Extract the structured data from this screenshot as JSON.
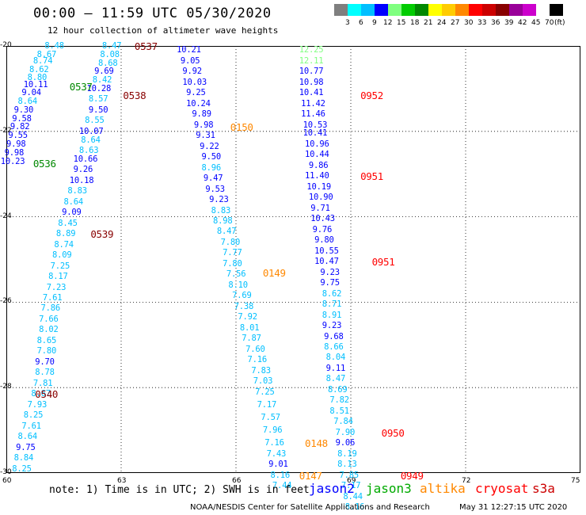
{
  "header": {
    "title": "00:00 — 11:59 UTC 05/30/2020",
    "subtitle": "12 hour collection of altimeter wave heights"
  },
  "colorbar": {
    "unit_label": "(ft)",
    "tick_labels": [
      "3",
      "6",
      "9",
      "12",
      "15",
      "18",
      "21",
      "24",
      "27",
      "30",
      "33",
      "36",
      "39",
      "42",
      "45",
      "70"
    ],
    "colors": [
      "#7f7f7f",
      "#00ffff",
      "#00bfff",
      "#0000ff",
      "#7fff7f",
      "#00cc00",
      "#008800",
      "#ffff00",
      "#ffcc00",
      "#ff8800",
      "#ff0000",
      "#cc0000",
      "#880000",
      "#990099",
      "#cc00cc",
      "#ffffff",
      "#000000"
    ]
  },
  "map": {
    "lat_labels": [
      "-20",
      "-22",
      "-24",
      "-26",
      "-28",
      "-30"
    ],
    "lon_labels": [
      "60",
      "63",
      "66",
      "69",
      "72",
      "75"
    ],
    "lon_range": [
      60,
      75
    ],
    "lat_range": [
      -30,
      -20
    ]
  },
  "observations": [
    {
      "v": "8.48",
      "lon": 61.0,
      "lat": -20.0,
      "c": "#00bfff"
    },
    {
      "v": "8.67",
      "lon": 60.8,
      "lat": -20.2,
      "c": "#00bfff"
    },
    {
      "v": "8.74",
      "lon": 60.7,
      "lat": -20.35,
      "c": "#00bfff"
    },
    {
      "v": "8.62",
      "lon": 60.6,
      "lat": -20.55,
      "c": "#00bfff"
    },
    {
      "v": "8.80",
      "lon": 60.55,
      "lat": -20.75,
      "c": "#00bfff"
    },
    {
      "v": "10.11",
      "lon": 60.45,
      "lat": -20.9,
      "c": "#0000ff"
    },
    {
      "v": "9.04",
      "lon": 60.4,
      "lat": -21.1,
      "c": "#0000ff"
    },
    {
      "v": "8.64",
      "lon": 60.3,
      "lat": -21.3,
      "c": "#00bfff"
    },
    {
      "v": "9.30",
      "lon": 60.2,
      "lat": -21.5,
      "c": "#0000ff"
    },
    {
      "v": "9.58",
      "lon": 60.15,
      "lat": -21.7,
      "c": "#0000ff"
    },
    {
      "v": "9.82",
      "lon": 60.1,
      "lat": -21.9,
      "c": "#0000ff"
    },
    {
      "v": "9.55",
      "lon": 60.05,
      "lat": -22.1,
      "c": "#0000ff"
    },
    {
      "v": "9.98",
      "lon": 60.0,
      "lat": -22.3,
      "c": "#0000ff"
    },
    {
      "v": "9.98",
      "lon": 59.95,
      "lat": -22.5,
      "c": "#0000ff"
    },
    {
      "v": "10.23",
      "lon": 59.85,
      "lat": -22.7,
      "c": "#0000ff"
    },
    {
      "v": "8.47",
      "lon": 62.5,
      "lat": -20.0,
      "c": "#00bfff"
    },
    {
      "v": "8.08",
      "lon": 62.45,
      "lat": -20.2,
      "c": "#00bfff"
    },
    {
      "v": "8.68",
      "lon": 62.4,
      "lat": -20.4,
      "c": "#00bfff"
    },
    {
      "v": "9.69",
      "lon": 62.3,
      "lat": -20.6,
      "c": "#0000ff"
    },
    {
      "v": "8.42",
      "lon": 62.25,
      "lat": -20.8,
      "c": "#00bfff"
    },
    {
      "v": "10.28",
      "lon": 62.1,
      "lat": -21.0,
      "c": "#0000ff"
    },
    {
      "v": "8.57",
      "lon": 62.15,
      "lat": -21.25,
      "c": "#00bfff"
    },
    {
      "v": "9.50",
      "lon": 62.15,
      "lat": -21.5,
      "c": "#0000ff"
    },
    {
      "v": "8.55",
      "lon": 62.05,
      "lat": -21.75,
      "c": "#00bfff"
    },
    {
      "v": "10.07",
      "lon": 61.9,
      "lat": -22.0,
      "c": "#0000ff"
    },
    {
      "v": "8.64",
      "lon": 61.95,
      "lat": -22.2,
      "c": "#00bfff"
    },
    {
      "v": "8.63",
      "lon": 61.9,
      "lat": -22.45,
      "c": "#00bfff"
    },
    {
      "v": "10.66",
      "lon": 61.75,
      "lat": -22.65,
      "c": "#0000ff"
    },
    {
      "v": "9.26",
      "lon": 61.75,
      "lat": -22.9,
      "c": "#0000ff"
    },
    {
      "v": "10.18",
      "lon": 61.65,
      "lat": -23.15,
      "c": "#0000ff"
    },
    {
      "v": "8.83",
      "lon": 61.6,
      "lat": -23.4,
      "c": "#00bfff"
    },
    {
      "v": "8.64",
      "lon": 61.5,
      "lat": -23.65,
      "c": "#00bfff"
    },
    {
      "v": "9.09",
      "lon": 61.45,
      "lat": -23.9,
      "c": "#0000ff"
    },
    {
      "v": "8.45",
      "lon": 61.35,
      "lat": -24.15,
      "c": "#00bfff"
    },
    {
      "v": "8.89",
      "lon": 61.3,
      "lat": -24.4,
      "c": "#00bfff"
    },
    {
      "v": "8.74",
      "lon": 61.25,
      "lat": -24.65,
      "c": "#00bfff"
    },
    {
      "v": "8.09",
      "lon": 61.2,
      "lat": -24.9,
      "c": "#00bfff"
    },
    {
      "v": "7.25",
      "lon": 61.15,
      "lat": -25.15,
      "c": "#00bfff"
    },
    {
      "v": "8.17",
      "lon": 61.1,
      "lat": -25.4,
      "c": "#00bfff"
    },
    {
      "v": "7.23",
      "lon": 61.05,
      "lat": -25.65,
      "c": "#00bfff"
    },
    {
      "v": "7.61",
      "lon": 60.95,
      "lat": -25.9,
      "c": "#00bfff"
    },
    {
      "v": "7.86",
      "lon": 60.9,
      "lat": -26.15,
      "c": "#00bfff"
    },
    {
      "v": "7.66",
      "lon": 60.85,
      "lat": -26.4,
      "c": "#00bfff"
    },
    {
      "v": "8.02",
      "lon": 60.85,
      "lat": -26.65,
      "c": "#00bfff"
    },
    {
      "v": "8.65",
      "lon": 60.8,
      "lat": -26.9,
      "c": "#00bfff"
    },
    {
      "v": "7.80",
      "lon": 60.8,
      "lat": -27.15,
      "c": "#00bfff"
    },
    {
      "v": "9.70",
      "lon": 60.75,
      "lat": -27.4,
      "c": "#0000ff"
    },
    {
      "v": "8.78",
      "lon": 60.75,
      "lat": -27.65,
      "c": "#00bfff"
    },
    {
      "v": "7.81",
      "lon": 60.7,
      "lat": -27.9,
      "c": "#00bfff"
    },
    {
      "v": "8.67",
      "lon": 60.65,
      "lat": -28.15,
      "c": "#00bfff"
    },
    {
      "v": "7.93",
      "lon": 60.55,
      "lat": -28.4,
      "c": "#00bfff"
    },
    {
      "v": "8.25",
      "lon": 60.45,
      "lat": -28.65,
      "c": "#00bfff"
    },
    {
      "v": "7.61",
      "lon": 60.4,
      "lat": -28.9,
      "c": "#00bfff"
    },
    {
      "v": "8.64",
      "lon": 60.3,
      "lat": -29.15,
      "c": "#00bfff"
    },
    {
      "v": "9.75",
      "lon": 60.25,
      "lat": -29.4,
      "c": "#0000ff"
    },
    {
      "v": "8.84",
      "lon": 60.2,
      "lat": -29.65,
      "c": "#00bfff"
    },
    {
      "v": "8.25",
      "lon": 60.15,
      "lat": -29.9,
      "c": "#00bfff"
    },
    {
      "v": "10.21",
      "lon": 64.45,
      "lat": -20.1,
      "c": "#0000ff"
    },
    {
      "v": "9.05",
      "lon": 64.55,
      "lat": -20.35,
      "c": "#0000ff"
    },
    {
      "v": "9.92",
      "lon": 64.6,
      "lat": -20.6,
      "c": "#0000ff"
    },
    {
      "v": "10.03",
      "lon": 64.6,
      "lat": -20.85,
      "c": "#0000ff"
    },
    {
      "v": "9.25",
      "lon": 64.7,
      "lat": -21.1,
      "c": "#0000ff"
    },
    {
      "v": "10.24",
      "lon": 64.7,
      "lat": -21.35,
      "c": "#0000ff"
    },
    {
      "v": "9.89",
      "lon": 64.85,
      "lat": -21.6,
      "c": "#0000ff"
    },
    {
      "v": "9.98",
      "lon": 64.9,
      "lat": -21.85,
      "c": "#0000ff"
    },
    {
      "v": "9.31",
      "lon": 64.95,
      "lat": -22.1,
      "c": "#0000ff"
    },
    {
      "v": "9.22",
      "lon": 65.05,
      "lat": -22.35,
      "c": "#0000ff"
    },
    {
      "v": "9.50",
      "lon": 65.1,
      "lat": -22.6,
      "c": "#0000ff"
    },
    {
      "v": "8.96",
      "lon": 65.1,
      "lat": -22.85,
      "c": "#00bfff"
    },
    {
      "v": "9.47",
      "lon": 65.15,
      "lat": -23.1,
      "c": "#0000ff"
    },
    {
      "v": "9.53",
      "lon": 65.2,
      "lat": -23.35,
      "c": "#0000ff"
    },
    {
      "v": "9.23",
      "lon": 65.3,
      "lat": -23.6,
      "c": "#0000ff"
    },
    {
      "v": "8.83",
      "lon": 65.35,
      "lat": -23.85,
      "c": "#00bfff"
    },
    {
      "v": "8.98",
      "lon": 65.4,
      "lat": -24.1,
      "c": "#00bfff"
    },
    {
      "v": "8.47",
      "lon": 65.5,
      "lat": -24.35,
      "c": "#00bfff"
    },
    {
      "v": "7.80",
      "lon": 65.6,
      "lat": -24.6,
      "c": "#00bfff"
    },
    {
      "v": "7.77",
      "lon": 65.65,
      "lat": -24.85,
      "c": "#00bfff"
    },
    {
      "v": "7.80",
      "lon": 65.65,
      "lat": -25.1,
      "c": "#00bfff"
    },
    {
      "v": "7.56",
      "lon": 65.75,
      "lat": -25.35,
      "c": "#00bfff"
    },
    {
      "v": "8.10",
      "lon": 65.8,
      "lat": -25.6,
      "c": "#00bfff"
    },
    {
      "v": "7.69",
      "lon": 65.9,
      "lat": -25.85,
      "c": "#00bfff"
    },
    {
      "v": "7.38",
      "lon": 65.95,
      "lat": -26.1,
      "c": "#00bfff"
    },
    {
      "v": "7.92",
      "lon": 66.05,
      "lat": -26.35,
      "c": "#00bfff"
    },
    {
      "v": "8.01",
      "lon": 66.1,
      "lat": -26.6,
      "c": "#00bfff"
    },
    {
      "v": "7.87",
      "lon": 66.15,
      "lat": -26.85,
      "c": "#00bfff"
    },
    {
      "v": "7.60",
      "lon": 66.25,
      "lat": -27.1,
      "c": "#00bfff"
    },
    {
      "v": "7.16",
      "lon": 66.3,
      "lat": -27.35,
      "c": "#00bfff"
    },
    {
      "v": "7.83",
      "lon": 66.4,
      "lat": -27.6,
      "c": "#00bfff"
    },
    {
      "v": "7.03",
      "lon": 66.45,
      "lat": -27.85,
      "c": "#00bfff"
    },
    {
      "v": "7.25",
      "lon": 66.5,
      "lat": -28.1,
      "c": "#00bfff"
    },
    {
      "v": "7.17",
      "lon": 66.55,
      "lat": -28.4,
      "c": "#00bfff"
    },
    {
      "v": "7.57",
      "lon": 66.65,
      "lat": -28.7,
      "c": "#00bfff"
    },
    {
      "v": "7.96",
      "lon": 66.7,
      "lat": -29.0,
      "c": "#00bfff"
    },
    {
      "v": "7.16",
      "lon": 66.75,
      "lat": -29.3,
      "c": "#00bfff"
    },
    {
      "v": "7.43",
      "lon": 66.8,
      "lat": -29.55,
      "c": "#00bfff"
    },
    {
      "v": "9.01",
      "lon": 66.85,
      "lat": -29.8,
      "c": "#0000ff"
    },
    {
      "v": "8.16",
      "lon": 66.9,
      "lat": -30.05,
      "c": "#00bfff"
    },
    {
      "v": "7.44",
      "lon": 66.95,
      "lat": -30.3,
      "c": "#00bfff"
    },
    {
      "v": "12.25",
      "lon": 67.65,
      "lat": -20.1,
      "c": "#7fff7f"
    },
    {
      "v": "12.11",
      "lon": 67.65,
      "lat": -20.35,
      "c": "#7fff7f"
    },
    {
      "v": "10.77",
      "lon": 67.65,
      "lat": -20.6,
      "c": "#0000ff"
    },
    {
      "v": "10.98",
      "lon": 67.65,
      "lat": -20.85,
      "c": "#0000ff"
    },
    {
      "v": "10.41",
      "lon": 67.65,
      "lat": -21.1,
      "c": "#0000ff"
    },
    {
      "v": "11.42",
      "lon": 67.7,
      "lat": -21.35,
      "c": "#0000ff"
    },
    {
      "v": "11.46",
      "lon": 67.7,
      "lat": -21.6,
      "c": "#0000ff"
    },
    {
      "v": "10.53",
      "lon": 67.75,
      "lat": -21.85,
      "c": "#0000ff"
    },
    {
      "v": "10.41",
      "lon": 67.75,
      "lat": -22.05,
      "c": "#0000ff"
    },
    {
      "v": "10.96",
      "lon": 67.8,
      "lat": -22.3,
      "c": "#0000ff"
    },
    {
      "v": "10.44",
      "lon": 67.8,
      "lat": -22.55,
      "c": "#0000ff"
    },
    {
      "v": "9.86",
      "lon": 67.9,
      "lat": -22.8,
      "c": "#0000ff"
    },
    {
      "v": "11.40",
      "lon": 67.8,
      "lat": -23.05,
      "c": "#0000ff"
    },
    {
      "v": "10.19",
      "lon": 67.85,
      "lat": -23.3,
      "c": "#0000ff"
    },
    {
      "v": "10.90",
      "lon": 67.9,
      "lat": -23.55,
      "c": "#0000ff"
    },
    {
      "v": "9.71",
      "lon": 67.95,
      "lat": -23.8,
      "c": "#0000ff"
    },
    {
      "v": "10.43",
      "lon": 67.95,
      "lat": -24.05,
      "c": "#0000ff"
    },
    {
      "v": "9.76",
      "lon": 68.0,
      "lat": -24.3,
      "c": "#0000ff"
    },
    {
      "v": "9.80",
      "lon": 68.05,
      "lat": -24.55,
      "c": "#0000ff"
    },
    {
      "v": "10.55",
      "lon": 68.05,
      "lat": -24.8,
      "c": "#0000ff"
    },
    {
      "v": "10.47",
      "lon": 68.05,
      "lat": -25.05,
      "c": "#0000ff"
    },
    {
      "v": "9.23",
      "lon": 68.2,
      "lat": -25.3,
      "c": "#0000ff"
    },
    {
      "v": "9.75",
      "lon": 68.2,
      "lat": -25.55,
      "c": "#0000ff"
    },
    {
      "v": "8.62",
      "lon": 68.25,
      "lat": -25.8,
      "c": "#00bfff"
    },
    {
      "v": "8.71",
      "lon": 68.25,
      "lat": -26.05,
      "c": "#00bfff"
    },
    {
      "v": "8.91",
      "lon": 68.25,
      "lat": -26.3,
      "c": "#00bfff"
    },
    {
      "v": "9.23",
      "lon": 68.25,
      "lat": -26.55,
      "c": "#0000ff"
    },
    {
      "v": "9.68",
      "lon": 68.3,
      "lat": -26.8,
      "c": "#0000ff"
    },
    {
      "v": "8.66",
      "lon": 68.3,
      "lat": -27.05,
      "c": "#00bfff"
    },
    {
      "v": "8.04",
      "lon": 68.35,
      "lat": -27.3,
      "c": "#00bfff"
    },
    {
      "v": "9.11",
      "lon": 68.35,
      "lat": -27.55,
      "c": "#0000ff"
    },
    {
      "v": "8.47",
      "lon": 68.35,
      "lat": -27.8,
      "c": "#00bfff"
    },
    {
      "v": "8.69",
      "lon": 68.4,
      "lat": -28.05,
      "c": "#00bfff"
    },
    {
      "v": "7.82",
      "lon": 68.45,
      "lat": -28.3,
      "c": "#00bfff"
    },
    {
      "v": "8.51",
      "lon": 68.45,
      "lat": -28.55,
      "c": "#00bfff"
    },
    {
      "v": "7.84",
      "lon": 68.55,
      "lat": -28.8,
      "c": "#00bfff"
    },
    {
      "v": "7.90",
      "lon": 68.6,
      "lat": -29.05,
      "c": "#00bfff"
    },
    {
      "v": "9.06",
      "lon": 68.6,
      "lat": -29.3,
      "c": "#0000ff"
    },
    {
      "v": "8.19",
      "lon": 68.65,
      "lat": -29.55,
      "c": "#00bfff"
    },
    {
      "v": "8.13",
      "lon": 68.65,
      "lat": -29.8,
      "c": "#00bfff"
    },
    {
      "v": "7.85",
      "lon": 68.7,
      "lat": -30.05,
      "c": "#00bfff"
    },
    {
      "v": "7.17",
      "lon": 68.75,
      "lat": -30.3,
      "c": "#00bfff"
    },
    {
      "v": "8.44",
      "lon": 68.8,
      "lat": -30.55,
      "c": "#00bfff"
    },
    {
      "v": "8.16",
      "lon": 68.85,
      "lat": -30.8,
      "c": "#00bfff"
    }
  ],
  "pass_labels": [
    {
      "t": "0537",
      "lon": 63.35,
      "lat": -20.0,
      "c": "#880000"
    },
    {
      "t": "0537",
      "lon": 61.65,
      "lat": -20.95,
      "c": "#008800"
    },
    {
      "t": "0538",
      "lon": 63.05,
      "lat": -21.15,
      "c": "#880000"
    },
    {
      "t": "0536",
      "lon": 60.7,
      "lat": -22.75,
      "c": "#008800"
    },
    {
      "t": "0150",
      "lon": 65.85,
      "lat": -21.9,
      "c": "#ff8800"
    },
    {
      "t": "0952",
      "lon": 69.25,
      "lat": -21.15,
      "c": "#ff0000"
    },
    {
      "t": "0951",
      "lon": 69.25,
      "lat": -23.05,
      "c": "#ff0000"
    },
    {
      "t": "0951",
      "lon": 69.55,
      "lat": -25.05,
      "c": "#ff0000"
    },
    {
      "t": "0539",
      "lon": 62.2,
      "lat": -24.4,
      "c": "#880000"
    },
    {
      "t": "0149",
      "lon": 66.7,
      "lat": -25.3,
      "c": "#ff8800"
    },
    {
      "t": "0540",
      "lon": 60.75,
      "lat": -28.15,
      "c": "#880000"
    },
    {
      "t": "0950",
      "lon": 69.8,
      "lat": -29.05,
      "c": "#ff0000"
    },
    {
      "t": "0148",
      "lon": 67.8,
      "lat": -29.3,
      "c": "#ff8800"
    },
    {
      "t": "0147",
      "lon": 67.65,
      "lat": -30.05,
      "c": "#ff8800"
    },
    {
      "t": "0949",
      "lon": 70.3,
      "lat": -30.05,
      "c": "#ff0000"
    }
  ],
  "footer": {
    "note": "note: 1) Time is in UTC; 2) SWH is in feet",
    "satellites": [
      {
        "name": "jason2",
        "color": "#0000ff"
      },
      {
        "name": "jason3",
        "color": "#00aa00"
      },
      {
        "name": "altika",
        "color": "#ff8800"
      },
      {
        "name": "cryosat",
        "color": "#ff0000"
      },
      {
        "name": "s3a",
        "color": "#cc0000"
      }
    ],
    "credit": "NOAA/NESDIS Center for Satellite Applications and Research",
    "timestamp": "May 31 12:27:15 UTC 2020"
  }
}
